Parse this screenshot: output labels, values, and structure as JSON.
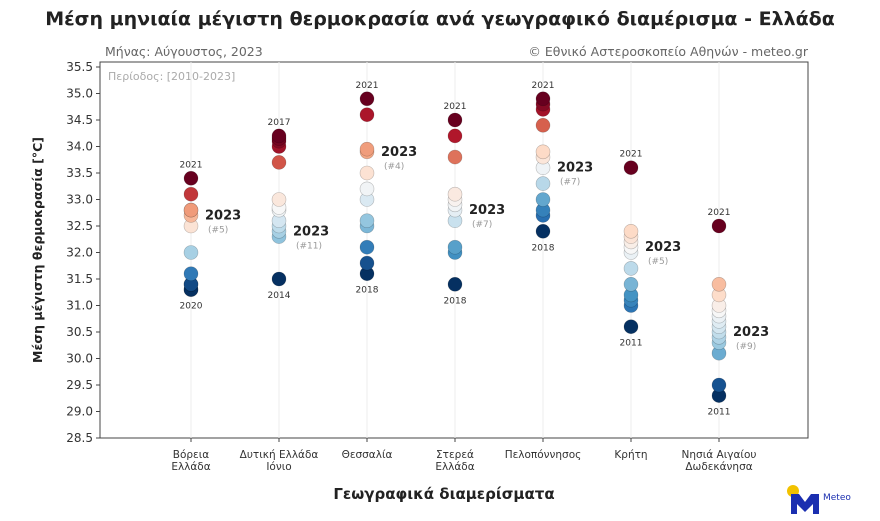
{
  "title": "Μέση μηνιαία μέγιστη θερμοκρασία ανά γεωγραφικό διαμέρισμα - Ελλάδα",
  "subtitle_left": "Μήνας: Αύγουστος, 2023",
  "subtitle_right": "© Εθνικό Αστεροσκοπείο Αθηνών - meteo.gr",
  "logo_text": "Meteo",
  "chart_data": {
    "type": "scatter",
    "annotation": "Περίοδος: [2010-2023]",
    "xlabel": "Γεωγραφικά διαμερίσματα",
    "ylabel": "Μέση μέγιστη θερμοκρασία [°C]",
    "ylim": [
      28.5,
      35.5
    ],
    "yticks": [
      "28.5",
      "29.0",
      "29.5",
      "30.0",
      "30.5",
      "31.0",
      "31.5",
      "32.0",
      "32.5",
      "33.0",
      "33.5",
      "34.0",
      "34.5",
      "35.0",
      "35.5"
    ],
    "grid": "vertical",
    "colormap": [
      "#67001f",
      "#b2182b",
      "#d6604d",
      "#f4a582",
      "#fddbc7",
      "#f7f7f7",
      "#d1e5f0",
      "#92c5de",
      "#4393c3",
      "#2166ac",
      "#053061"
    ],
    "highlight_year": "2023",
    "categories": [
      {
        "label": [
          "Βόρεια",
          "Ελλάδα"
        ],
        "values": [
          33.4,
          33.1,
          32.8,
          32.8,
          32.7,
          32.5,
          32.0,
          31.6,
          31.4,
          31.4,
          31.3,
          31.3
        ],
        "max_year": "2021",
        "min_year": "2020",
        "value_2023": 32.7,
        "rank_2023": "(#5)"
      },
      {
        "label": [
          "Δυτική Ελλάδα",
          "Ιόνιο"
        ],
        "values": [
          34.2,
          34.15,
          34.1,
          34.0,
          33.7,
          33.0,
          32.85,
          32.8,
          32.6,
          32.5,
          32.4,
          32.3,
          31.5
        ],
        "max_year": "2017",
        "min_year": "2014",
        "value_2023": 32.4,
        "rank_2023": "(#11)"
      },
      {
        "label": [
          "Θεσσαλία"
        ],
        "values": [
          34.9,
          34.6,
          33.95,
          33.9,
          33.5,
          33.2,
          33.0,
          32.6,
          32.5,
          32.1,
          31.8,
          31.6
        ],
        "max_year": "2021",
        "min_year": "2018",
        "value_2023": 33.9,
        "rank_2023": "(#4)"
      },
      {
        "label": [
          "Στερεά",
          "Ελλάδα"
        ],
        "values": [
          34.5,
          34.2,
          33.8,
          33.1,
          33.0,
          32.9,
          32.8,
          32.6,
          32.1,
          32.0,
          31.4
        ],
        "max_year": "2021",
        "min_year": "2018",
        "value_2023": 32.8,
        "rank_2023": "(#7)"
      },
      {
        "label": [
          "Πελοπόννησος"
        ],
        "values": [
          34.9,
          34.8,
          34.7,
          34.4,
          33.9,
          33.8,
          33.6,
          33.3,
          33.0,
          32.8,
          32.7,
          32.4
        ],
        "max_year": "2021",
        "min_year": "2018",
        "value_2023": 33.6,
        "rank_2023": "(#7)"
      },
      {
        "label": [
          "Κρήτη"
        ],
        "values": [
          33.6,
          32.4,
          32.3,
          32.2,
          32.1,
          32.0,
          31.7,
          31.4,
          31.2,
          31.1,
          31.0,
          30.6
        ],
        "max_year": "2021",
        "min_year": "2011",
        "value_2023": 32.1,
        "rank_2023": "(#5)"
      },
      {
        "label": [
          "Νησιά Αιγαίου",
          "Δωδεκάνησα"
        ],
        "values": [
          32.5,
          31.4,
          31.2,
          31.0,
          30.9,
          30.8,
          30.7,
          30.6,
          30.5,
          30.4,
          30.3,
          30.1,
          29.5,
          29.3
        ],
        "max_year": "2021",
        "min_year": "2011",
        "value_2023": 30.5,
        "rank_2023": "(#9)"
      }
    ]
  }
}
